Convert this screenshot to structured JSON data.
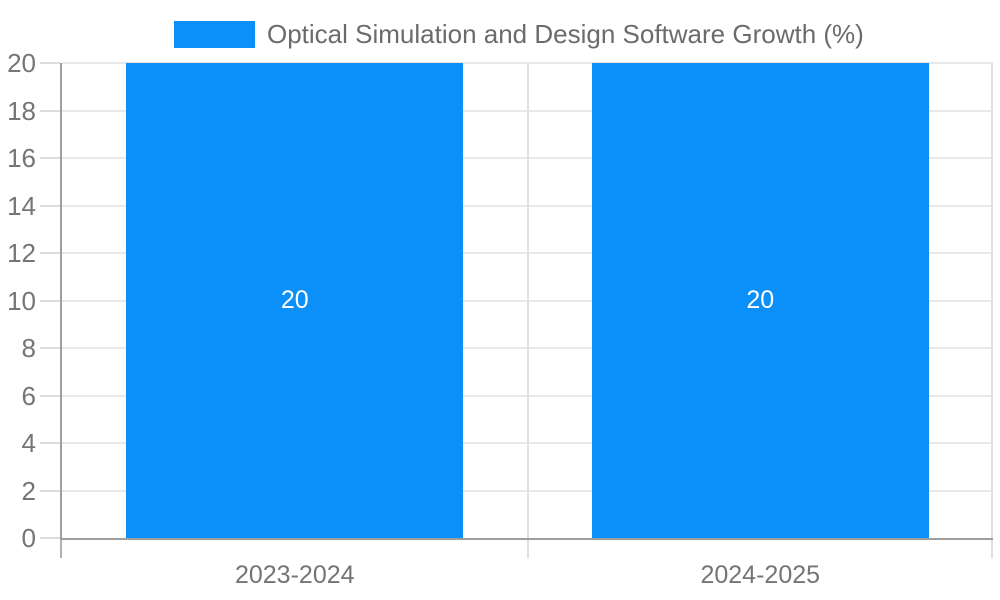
{
  "legend": {
    "swatch_color": "#0a90f8",
    "label": "Optical Simulation and Design Software Growth (%)"
  },
  "colors": {
    "background": "#ffffff",
    "bar": "#0a90f8",
    "axis_line": "#9e9e9e",
    "gridline": "#e8e8e8",
    "separator": "#e0e0e0",
    "tick": "#dcdcdc",
    "tick_dark": "#b3b3b3",
    "axis_text": "#757575",
    "legend_text": "#6b6b6b",
    "bar_value_text": "#ffffff"
  },
  "chart_data": {
    "type": "bar",
    "title": "Optical Simulation and Design Software Growth (%)",
    "series": [
      {
        "name": "Optical Simulation and Design Software Growth (%)",
        "values": [
          20,
          20
        ]
      }
    ],
    "categories": [
      "2023-2024",
      "2024-2025"
    ],
    "values": [
      20,
      20
    ],
    "value_labels": [
      "20",
      "20"
    ],
    "xlabel": "",
    "ylabel": "",
    "ylim": [
      0,
      20
    ],
    "ytick_step": 2,
    "yticks": [
      0,
      2,
      4,
      6,
      8,
      10,
      12,
      14,
      16,
      18,
      20
    ],
    "grid": true,
    "legend_position": "top-center"
  }
}
